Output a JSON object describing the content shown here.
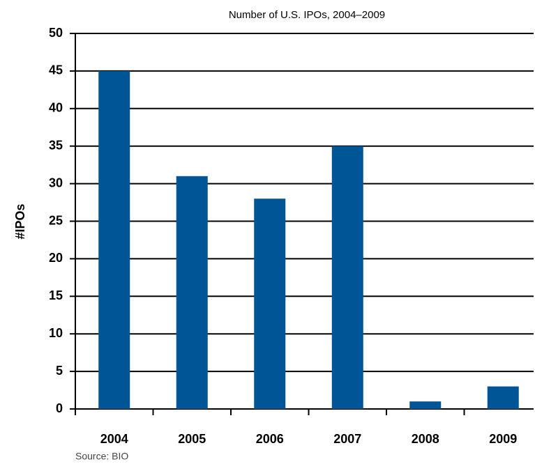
{
  "chart_data": {
    "type": "bar",
    "title": "Number of U.S. IPOs, 2004–2009",
    "y_label": "#IPOs",
    "source": "Source: BIO",
    "categories": [
      "2004",
      "2005",
      "2006",
      "2007",
      "2008",
      "2009"
    ],
    "values": [
      45,
      31,
      28,
      35,
      1,
      3
    ],
    "color": "#005596",
    "ylim": [
      0,
      50
    ],
    "yticks": [
      0,
      5,
      10,
      15,
      20,
      25,
      30,
      35,
      40,
      45,
      50
    ],
    "grid": true
  }
}
